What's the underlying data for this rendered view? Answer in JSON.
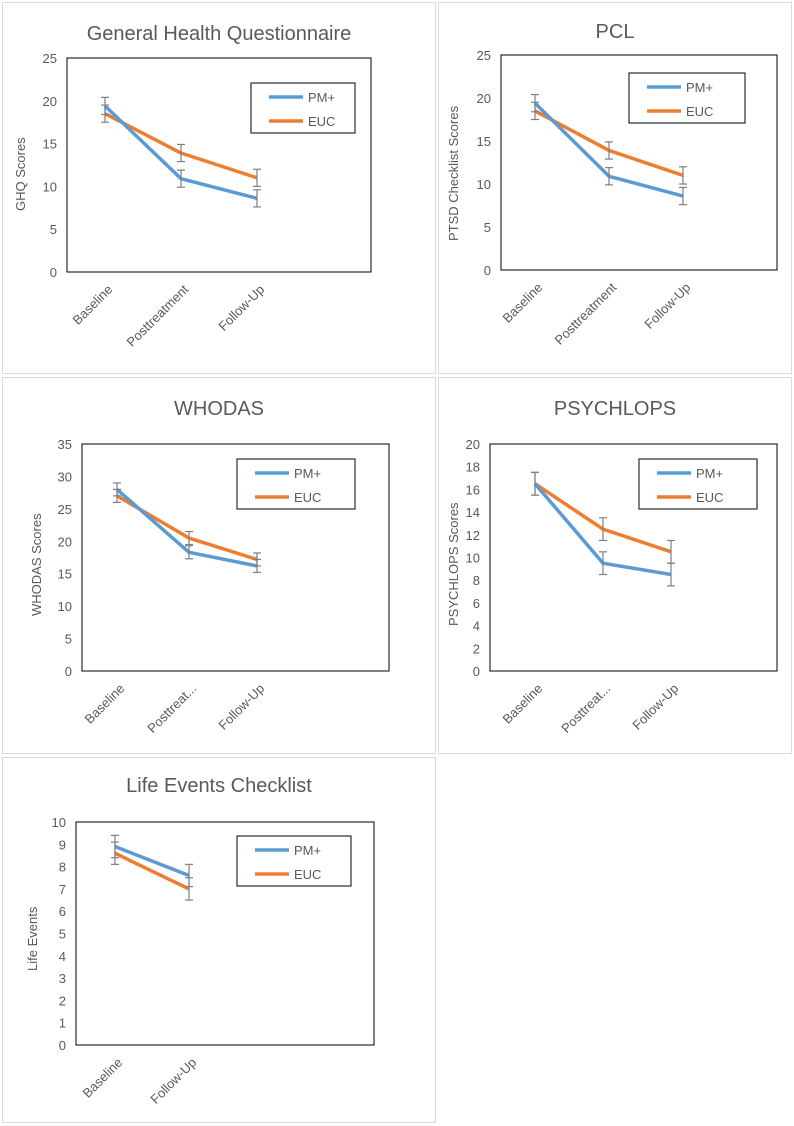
{
  "colors": {
    "pm_plus": "#5B9BD5",
    "euc": "#ED7D31",
    "axis_text": "#595959",
    "error_bar": "#7f7f7f"
  },
  "chart_data": [
    {
      "id": "ghq",
      "type": "line",
      "title": "General Health Questionnaire",
      "ylabel": "GHQ Scores",
      "ylim": [
        0,
        25
      ],
      "yticks": [
        0,
        5,
        10,
        15,
        20,
        25
      ],
      "categories": [
        "Baseline",
        "Posttreatment",
        "Follow-Up"
      ],
      "legend_position": "top-right",
      "series": [
        {
          "name": "PM+",
          "values": [
            19.4,
            10.9,
            8.6
          ],
          "errors": [
            1.0,
            1.0,
            1.0
          ]
        },
        {
          "name": "EUC",
          "values": [
            18.5,
            13.9,
            11.0
          ],
          "errors": [
            1.0,
            1.0,
            1.0
          ]
        }
      ]
    },
    {
      "id": "pcl",
      "type": "line",
      "title": "PCL",
      "ylabel": "PTSD Checklist Scores",
      "ylim": [
        0,
        25
      ],
      "yticks": [
        0,
        5,
        10,
        15,
        20,
        25
      ],
      "categories": [
        "Baseline",
        "Posttreatment",
        "Follow-Up"
      ],
      "legend_position": "top-right",
      "series": [
        {
          "name": "PM+",
          "values": [
            19.4,
            10.9,
            8.6
          ],
          "errors": [
            1.0,
            1.0,
            1.0
          ]
        },
        {
          "name": "EUC",
          "values": [
            18.5,
            13.9,
            11.0
          ],
          "errors": [
            1.0,
            1.0,
            1.0
          ]
        }
      ]
    },
    {
      "id": "whodas",
      "type": "line",
      "title": "WHODAS",
      "ylabel": "WHODAS Scores",
      "ylim": [
        0,
        35
      ],
      "yticks": [
        0,
        5,
        10,
        15,
        20,
        25,
        30,
        35
      ],
      "categories": [
        "Baseline",
        "Posttreat...",
        "Follow-Up"
      ],
      "legend_position": "top-right",
      "series": [
        {
          "name": "PM+",
          "values": [
            28.0,
            18.3,
            16.2
          ],
          "errors": [
            1.0,
            1.0,
            1.0
          ]
        },
        {
          "name": "EUC",
          "values": [
            27.0,
            20.5,
            17.2
          ],
          "errors": [
            1.0,
            1.0,
            1.0
          ]
        }
      ]
    },
    {
      "id": "psychlops",
      "type": "line",
      "title": "PSYCHLOPS",
      "ylabel": "PSYCHLOPS Scores",
      "ylim": [
        0,
        20
      ],
      "yticks": [
        0,
        2,
        4,
        6,
        8,
        10,
        12,
        14,
        16,
        18,
        20
      ],
      "categories": [
        "Baseline",
        "Posttreat...",
        "Follow-Up"
      ],
      "legend_position": "top-right",
      "series": [
        {
          "name": "PM+",
          "values": [
            16.5,
            9.5,
            8.5
          ],
          "errors": [
            1.0,
            1.0,
            1.0
          ]
        },
        {
          "name": "EUC",
          "values": [
            16.5,
            12.5,
            10.5
          ],
          "errors": [
            1.0,
            1.0,
            1.0
          ]
        }
      ]
    },
    {
      "id": "lec",
      "type": "line",
      "title": "Life Events Checklist",
      "ylabel": "Life Events",
      "ylim": [
        0,
        10
      ],
      "yticks": [
        0,
        1,
        2,
        3,
        4,
        5,
        6,
        7,
        8,
        9,
        10
      ],
      "categories": [
        "Baseline",
        "Follow-Up"
      ],
      "legend_position": "top-right",
      "series": [
        {
          "name": "PM+",
          "values": [
            8.9,
            7.6
          ],
          "errors": [
            0.5,
            0.5
          ]
        },
        {
          "name": "EUC",
          "values": [
            8.6,
            7.0
          ],
          "errors": [
            0.5,
            0.5
          ]
        }
      ]
    }
  ]
}
